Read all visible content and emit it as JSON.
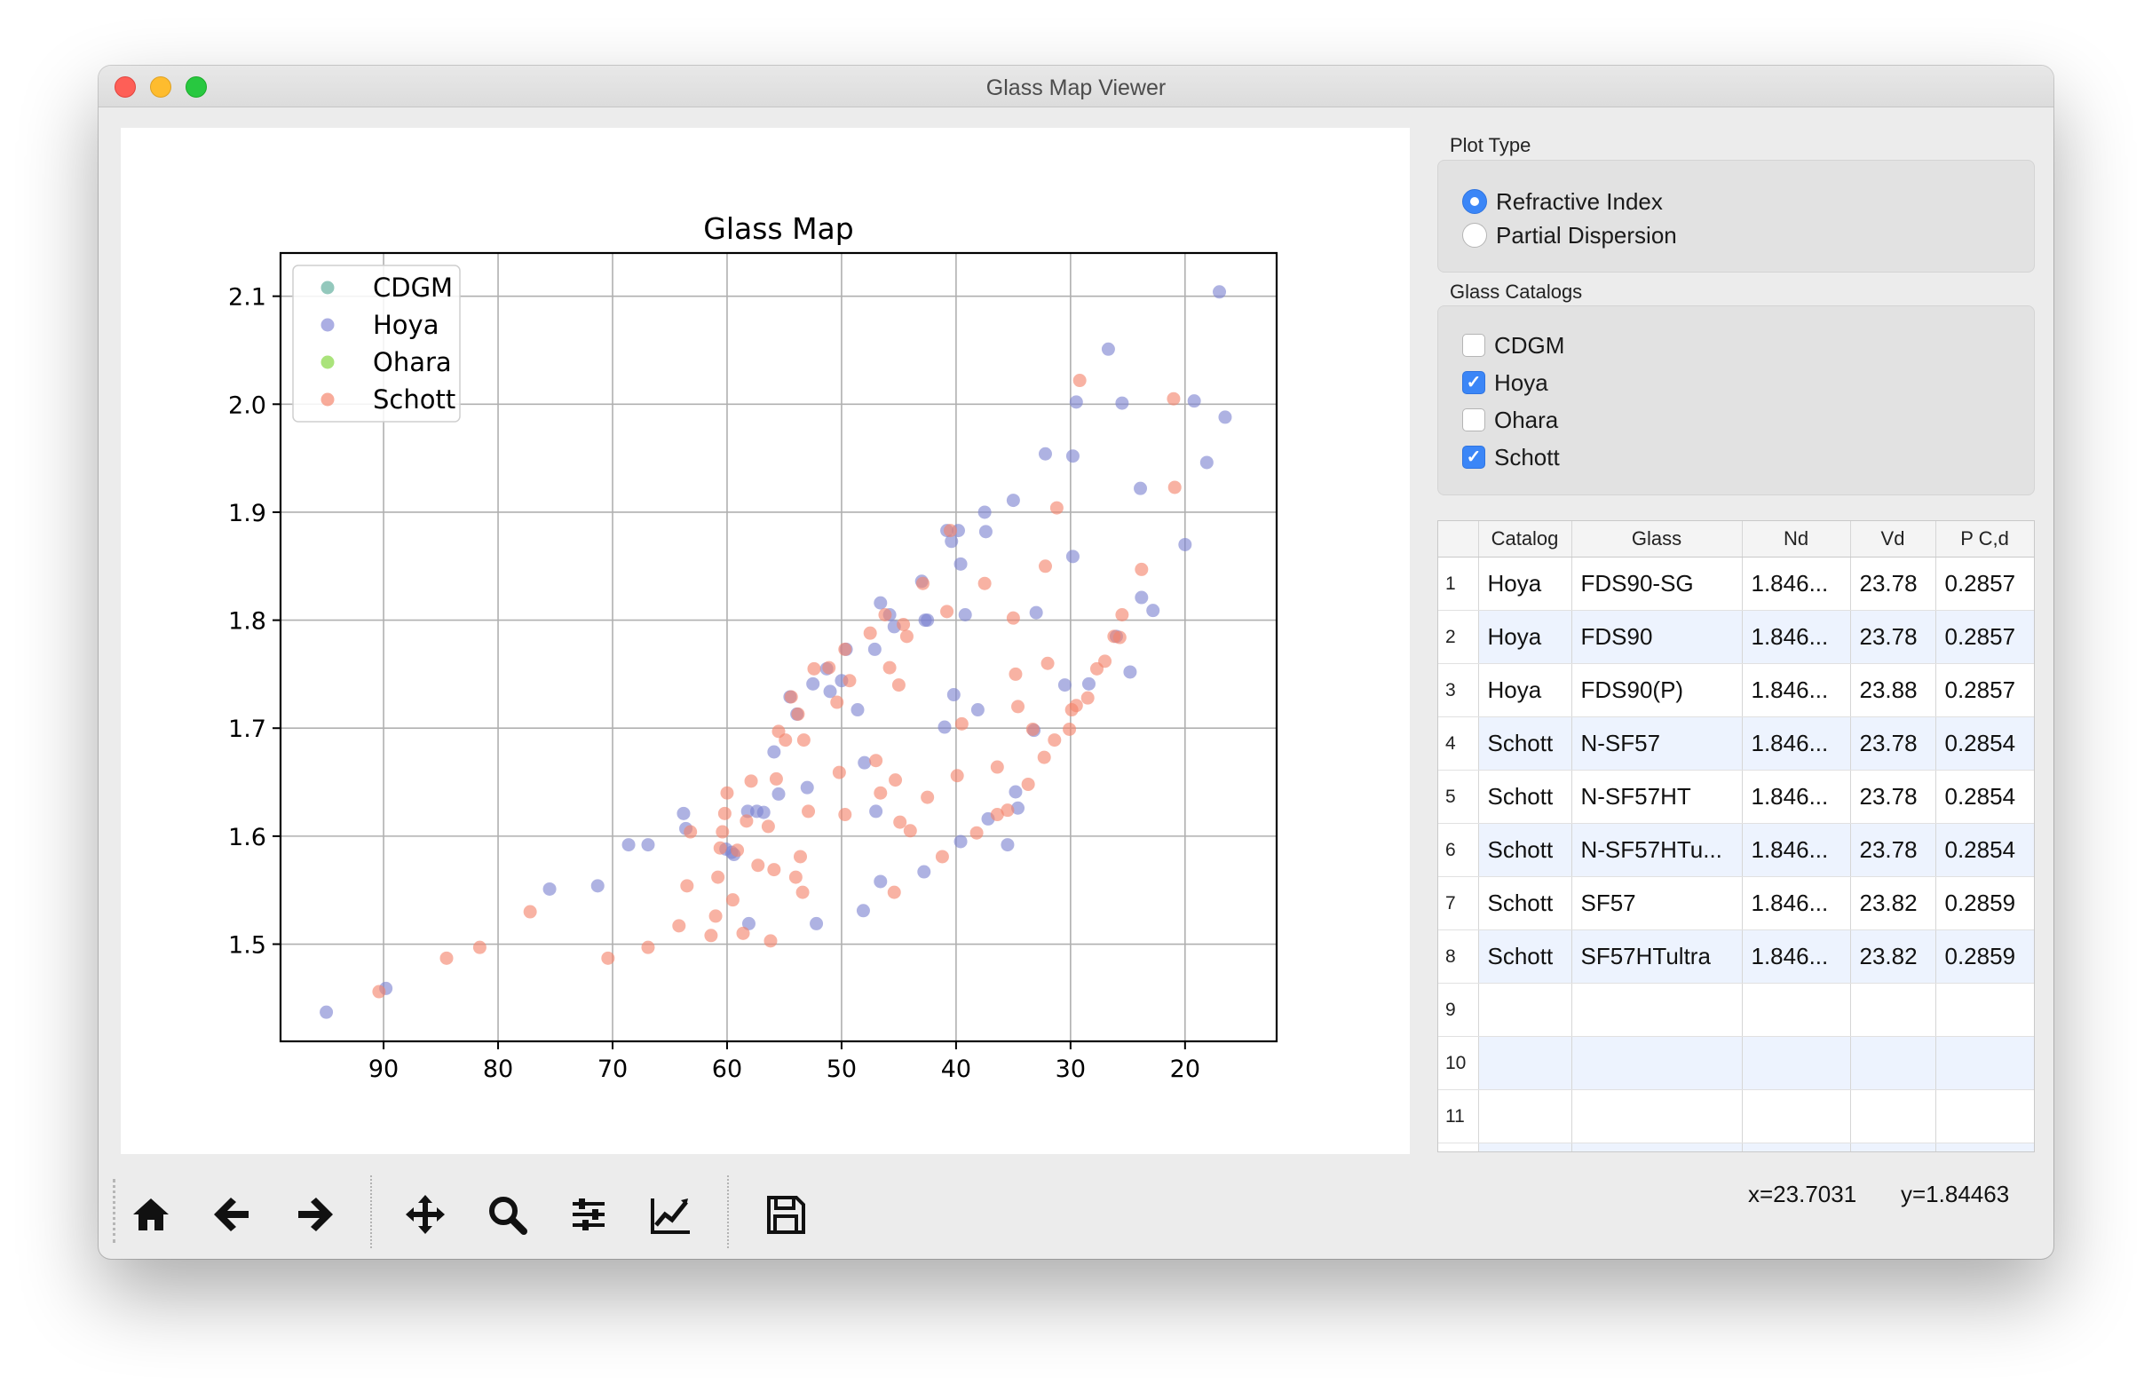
{
  "window": {
    "title": "Glass Map Viewer"
  },
  "plot_type": {
    "label": "Plot Type",
    "options": [
      {
        "label": "Refractive Index",
        "selected": true
      },
      {
        "label": "Partial Dispersion",
        "selected": false
      }
    ]
  },
  "catalogs": {
    "label": "Glass Catalogs",
    "items": [
      {
        "label": "CDGM",
        "checked": false
      },
      {
        "label": "Hoya",
        "checked": true
      },
      {
        "label": "Ohara",
        "checked": false
      },
      {
        "label": "Schott",
        "checked": true
      }
    ]
  },
  "table": {
    "columns": [
      "Catalog",
      "Glass",
      "Nd",
      "Vd",
      "P C,d"
    ],
    "rows": [
      {
        "n": "1",
        "catalog": "Hoya",
        "glass": "FDS90-SG",
        "nd": "1.846...",
        "vd": "23.78",
        "pcd": "0.2857"
      },
      {
        "n": "2",
        "catalog": "Hoya",
        "glass": "FDS90",
        "nd": "1.846...",
        "vd": "23.78",
        "pcd": "0.2857"
      },
      {
        "n": "3",
        "catalog": "Hoya",
        "glass": "FDS90(P)",
        "nd": "1.846...",
        "vd": "23.88",
        "pcd": "0.2857"
      },
      {
        "n": "4",
        "catalog": "Schott",
        "glass": "N-SF57",
        "nd": "1.846...",
        "vd": "23.78",
        "pcd": "0.2854"
      },
      {
        "n": "5",
        "catalog": "Schott",
        "glass": "N-SF57HT",
        "nd": "1.846...",
        "vd": "23.78",
        "pcd": "0.2854"
      },
      {
        "n": "6",
        "catalog": "Schott",
        "glass": "N-SF57HTu...",
        "nd": "1.846...",
        "vd": "23.78",
        "pcd": "0.2854"
      },
      {
        "n": "7",
        "catalog": "Schott",
        "glass": "SF57",
        "nd": "1.846...",
        "vd": "23.82",
        "pcd": "0.2859"
      },
      {
        "n": "8",
        "catalog": "Schott",
        "glass": "SF57HTultra",
        "nd": "1.846...",
        "vd": "23.82",
        "pcd": "0.2859"
      },
      {
        "n": "9",
        "catalog": "",
        "glass": "",
        "nd": "",
        "vd": "",
        "pcd": ""
      },
      {
        "n": "10",
        "catalog": "",
        "glass": "",
        "nd": "",
        "vd": "",
        "pcd": ""
      },
      {
        "n": "11",
        "catalog": "",
        "glass": "",
        "nd": "",
        "vd": "",
        "pcd": ""
      },
      {
        "n": "",
        "catalog": "",
        "glass": "",
        "nd": "",
        "vd": "",
        "pcd": ""
      }
    ]
  },
  "status": {
    "x": "x=23.7031",
    "y": "y=1.84463"
  },
  "toolbar": {
    "icons": [
      "home-icon",
      "back-arrow-icon",
      "forward-arrow-icon",
      "pan-icon",
      "zoom-icon",
      "subplots-config-icon",
      "edit-axis-icon",
      "save-icon"
    ]
  },
  "chart_data": {
    "type": "scatter",
    "title": "Glass Map",
    "xlabel": "",
    "ylabel": "",
    "x_reversed": true,
    "xlim": [
      99,
      12
    ],
    "ylim": [
      1.41,
      2.14
    ],
    "xticks": [
      90,
      80,
      70,
      60,
      50,
      40,
      30,
      20
    ],
    "yticks": [
      1.5,
      1.6,
      1.7,
      1.8,
      1.9,
      2.0,
      2.1
    ],
    "grid": true,
    "legend_position": "top-left",
    "legend": [
      {
        "name": "CDGM",
        "color": "#6fb5a6"
      },
      {
        "name": "Hoya",
        "color": "#8f93d9"
      },
      {
        "name": "Ohara",
        "color": "#8ed94f"
      },
      {
        "name": "Schott",
        "color": "#f58f78"
      }
    ],
    "series": [
      {
        "name": "Hoya",
        "color": "#7d82d1",
        "points": [
          [
            95.0,
            1.437
          ],
          [
            89.8,
            1.459
          ],
          [
            75.5,
            1.551
          ],
          [
            71.3,
            1.554
          ],
          [
            68.6,
            1.592
          ],
          [
            66.9,
            1.592
          ],
          [
            63.8,
            1.621
          ],
          [
            63.6,
            1.607
          ],
          [
            59.6,
            1.585
          ],
          [
            58.2,
            1.623
          ],
          [
            57.4,
            1.623
          ],
          [
            56.8,
            1.622
          ],
          [
            55.5,
            1.639
          ],
          [
            55.9,
            1.678
          ],
          [
            54.5,
            1.729
          ],
          [
            53.9,
            1.713
          ],
          [
            52.5,
            1.741
          ],
          [
            51.0,
            1.734
          ],
          [
            51.3,
            1.755
          ],
          [
            50.0,
            1.744
          ],
          [
            49.6,
            1.773
          ],
          [
            48.6,
            1.717
          ],
          [
            48.0,
            1.668
          ],
          [
            47.1,
            1.773
          ],
          [
            46.6,
            1.816
          ],
          [
            45.8,
            1.805
          ],
          [
            45.4,
            1.794
          ],
          [
            43.0,
            1.836
          ],
          [
            42.7,
            1.8
          ],
          [
            40.8,
            1.883
          ],
          [
            40.4,
            1.873
          ],
          [
            39.8,
            1.883
          ],
          [
            40.2,
            1.731
          ],
          [
            39.6,
            1.852
          ],
          [
            39.2,
            1.805
          ],
          [
            38.1,
            1.717
          ],
          [
            37.5,
            1.9
          ],
          [
            37.4,
            1.882
          ],
          [
            35.0,
            1.911
          ],
          [
            33.0,
            1.807
          ],
          [
            32.2,
            1.954
          ],
          [
            29.8,
            1.952
          ],
          [
            29.5,
            2.002
          ],
          [
            29.8,
            1.859
          ],
          [
            28.4,
            1.741
          ],
          [
            26.7,
            2.051
          ],
          [
            25.5,
            2.001
          ],
          [
            23.9,
            1.922
          ],
          [
            23.8,
            1.821
          ],
          [
            22.8,
            1.809
          ],
          [
            20.0,
            1.87
          ],
          [
            19.2,
            2.003
          ],
          [
            18.1,
            1.946
          ],
          [
            16.5,
            1.988
          ],
          [
            17.0,
            2.104
          ],
          [
            24.8,
            1.752
          ],
          [
            26.0,
            1.785
          ],
          [
            34.6,
            1.626
          ],
          [
            35.5,
            1.592
          ],
          [
            34.8,
            1.641
          ],
          [
            37.2,
            1.616
          ],
          [
            39.6,
            1.595
          ],
          [
            42.8,
            1.567
          ],
          [
            46.6,
            1.558
          ],
          [
            48.1,
            1.531
          ],
          [
            52.2,
            1.519
          ],
          [
            58.1,
            1.519
          ],
          [
            53.0,
            1.645
          ],
          [
            47.0,
            1.623
          ],
          [
            60.1,
            1.588
          ],
          [
            59.4,
            1.583
          ],
          [
            42.5,
            1.8
          ],
          [
            41.0,
            1.701
          ],
          [
            30.5,
            1.74
          ],
          [
            33.2,
            1.698
          ]
        ]
      },
      {
        "name": "Schott",
        "color": "#f4826a",
        "points": [
          [
            90.4,
            1.456
          ],
          [
            84.5,
            1.487
          ],
          [
            81.6,
            1.497
          ],
          [
            77.2,
            1.53
          ],
          [
            70.4,
            1.487
          ],
          [
            66.9,
            1.497
          ],
          [
            64.2,
            1.517
          ],
          [
            63.5,
            1.554
          ],
          [
            63.2,
            1.604
          ],
          [
            61.4,
            1.508
          ],
          [
            61.0,
            1.526
          ],
          [
            60.8,
            1.562
          ],
          [
            60.6,
            1.589
          ],
          [
            60.4,
            1.604
          ],
          [
            60.2,
            1.621
          ],
          [
            60.0,
            1.64
          ],
          [
            59.5,
            1.541
          ],
          [
            59.1,
            1.587
          ],
          [
            58.6,
            1.51
          ],
          [
            58.3,
            1.614
          ],
          [
            57.9,
            1.651
          ],
          [
            57.3,
            1.573
          ],
          [
            56.4,
            1.609
          ],
          [
            56.2,
            1.503
          ],
          [
            55.9,
            1.569
          ],
          [
            55.5,
            1.697
          ],
          [
            55.7,
            1.653
          ],
          [
            54.9,
            1.689
          ],
          [
            54.4,
            1.729
          ],
          [
            54.0,
            1.562
          ],
          [
            53.8,
            1.713
          ],
          [
            53.6,
            1.581
          ],
          [
            53.4,
            1.548
          ],
          [
            53.3,
            1.689
          ],
          [
            52.9,
            1.623
          ],
          [
            52.4,
            1.755
          ],
          [
            51.1,
            1.756
          ],
          [
            50.4,
            1.724
          ],
          [
            50.2,
            1.659
          ],
          [
            49.7,
            1.62
          ],
          [
            49.7,
            1.773
          ],
          [
            49.3,
            1.744
          ],
          [
            47.5,
            1.788
          ],
          [
            47.0,
            1.67
          ],
          [
            46.6,
            1.64
          ],
          [
            46.2,
            1.805
          ],
          [
            45.8,
            1.756
          ],
          [
            45.4,
            1.548
          ],
          [
            45.3,
            1.652
          ],
          [
            45.0,
            1.74
          ],
          [
            44.9,
            1.613
          ],
          [
            44.6,
            1.796
          ],
          [
            44.3,
            1.785
          ],
          [
            44.0,
            1.605
          ],
          [
            42.9,
            1.834
          ],
          [
            42.5,
            1.636
          ],
          [
            41.2,
            1.581
          ],
          [
            40.8,
            1.808
          ],
          [
            40.5,
            1.883
          ],
          [
            39.9,
            1.656
          ],
          [
            39.5,
            1.704
          ],
          [
            38.2,
            1.603
          ],
          [
            36.4,
            1.62
          ],
          [
            36.4,
            1.664
          ],
          [
            35.5,
            1.624
          ],
          [
            35.0,
            1.802
          ],
          [
            34.8,
            1.75
          ],
          [
            34.6,
            1.72
          ],
          [
            33.7,
            1.648
          ],
          [
            33.3,
            1.699
          ],
          [
            32.3,
            1.673
          ],
          [
            32.2,
            1.85
          ],
          [
            31.4,
            1.689
          ],
          [
            31.2,
            1.904
          ],
          [
            30.1,
            1.699
          ],
          [
            29.9,
            1.717
          ],
          [
            29.5,
            1.721
          ],
          [
            29.2,
            2.022
          ],
          [
            28.5,
            1.728
          ],
          [
            27.7,
            1.755
          ],
          [
            27.0,
            1.762
          ],
          [
            26.2,
            1.785
          ],
          [
            25.7,
            1.784
          ],
          [
            25.5,
            1.805
          ],
          [
            23.8,
            1.847
          ],
          [
            21.0,
            2.005
          ],
          [
            20.9,
            1.923
          ],
          [
            32.0,
            1.76
          ],
          [
            37.5,
            1.834
          ]
        ]
      }
    ]
  }
}
